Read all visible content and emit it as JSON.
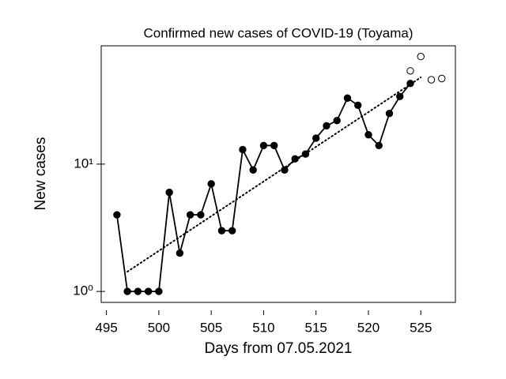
{
  "chart_data": {
    "type": "line",
    "title": "Confirmed new cases of COVID-19 (Toyama)",
    "xlabel": "Days from 07.05.2021",
    "ylabel": "New cases",
    "log_y": true,
    "xlim": [
      494.5,
      528.3
    ],
    "xticks": [
      495,
      500,
      505,
      510,
      515,
      520,
      525
    ],
    "ylim": [
      0.82,
      85
    ],
    "yticks": [
      {
        "value": 1,
        "label": "10⁰"
      },
      {
        "value": 10,
        "label": "10¹"
      }
    ],
    "series": [
      {
        "color": "#000000",
        "marker": "filled",
        "line": "solid",
        "x": [
          496,
          497,
          498,
          499,
          500,
          501,
          502,
          503,
          504,
          505,
          506,
          507,
          508,
          509,
          510,
          511,
          512,
          513,
          514,
          515,
          516,
          517,
          518,
          519,
          520,
          521,
          522,
          523,
          524
        ],
        "values": [
          4,
          1,
          1,
          1,
          1,
          6,
          2,
          4,
          4,
          7,
          3,
          3,
          13,
          9,
          14,
          14,
          9,
          11,
          12,
          16,
          20,
          22,
          33,
          29,
          17,
          14,
          25,
          34,
          43
        ]
      },
      {
        "color": "#000000",
        "marker": "open",
        "line": "none",
        "x": [
          524,
          525,
          526,
          527
        ],
        "values": [
          54,
          70,
          46,
          47
        ]
      },
      {
        "color": "#000000",
        "marker": "none",
        "line": "dotted",
        "x": [
          497,
          525
        ],
        "values": [
          1.43,
          48
        ]
      }
    ]
  }
}
